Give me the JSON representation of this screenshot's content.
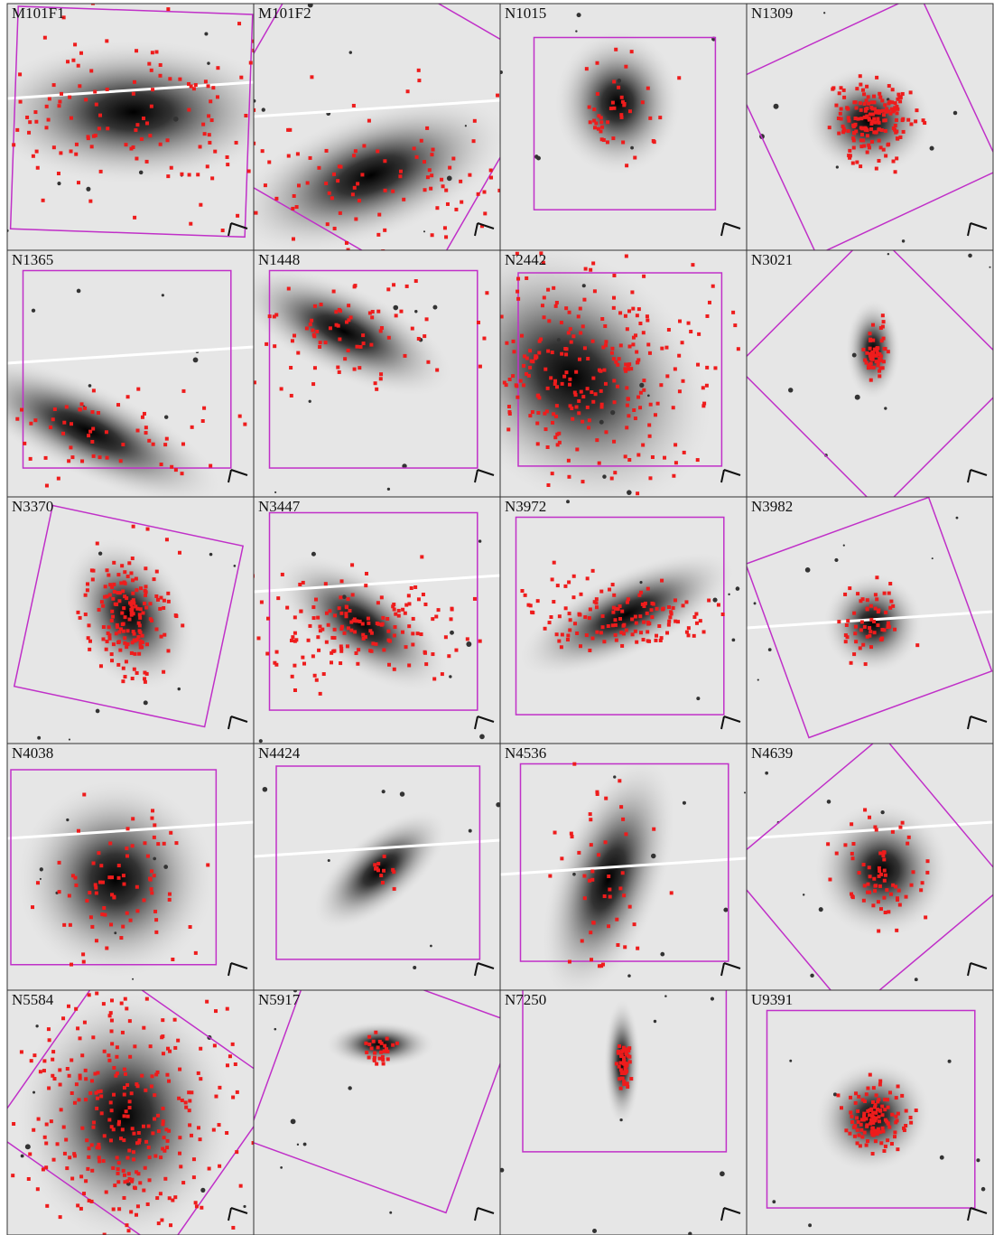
{
  "panels": [
    {
      "label": "M101F1"
    },
    {
      "label": "M101F2"
    },
    {
      "label": "N1015"
    },
    {
      "label": "N1309"
    },
    {
      "label": "N1365"
    },
    {
      "label": "N1448"
    },
    {
      "label": "N2442"
    },
    {
      "label": "N3021"
    },
    {
      "label": "N3370"
    },
    {
      "label": "N3447"
    },
    {
      "label": "N3972"
    },
    {
      "label": "N3982"
    },
    {
      "label": "N4038"
    },
    {
      "label": "N4424"
    },
    {
      "label": "N4536"
    },
    {
      "label": "N4639"
    },
    {
      "label": "N5584"
    },
    {
      "label": "N5917"
    },
    {
      "label": "N7250"
    },
    {
      "label": "U9391"
    }
  ]
}
